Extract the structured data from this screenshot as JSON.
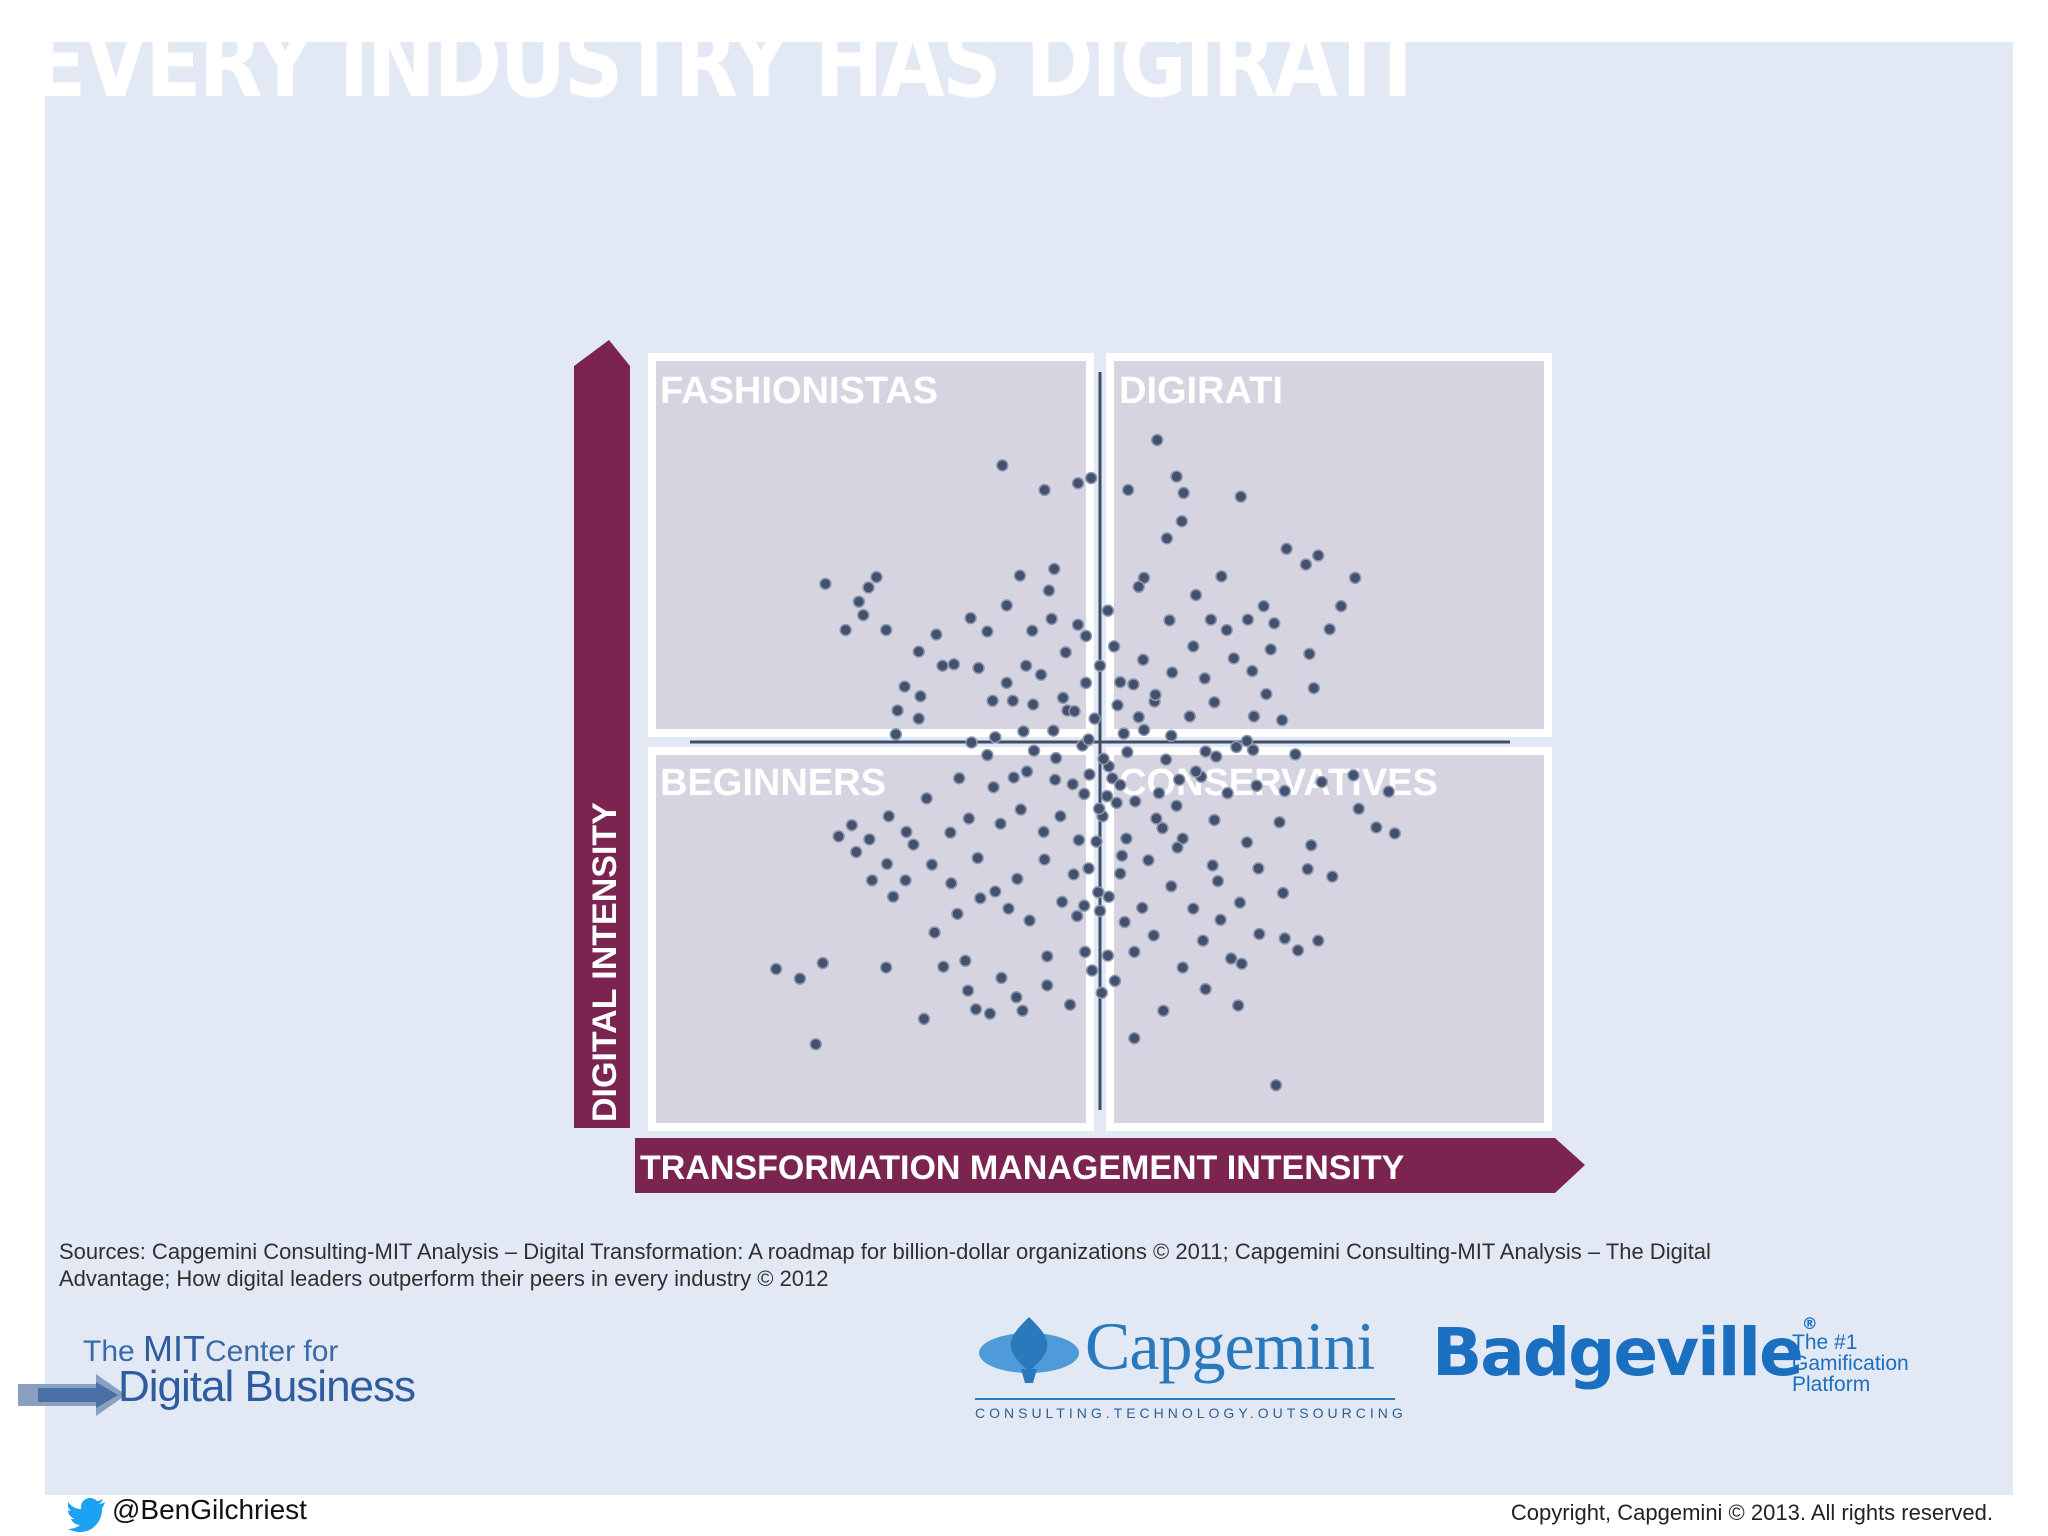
{
  "title": "EVERY INDUSTRY HAS DIGIRATI",
  "colors": {
    "background": "#e3e9f4",
    "accent": "#7b2450",
    "quadrant": "#d6d4e1",
    "dot": "#44516e"
  },
  "chart_data": {
    "type": "scatter",
    "xlabel": "TRANSFORMATION MANAGEMENT INTENSITY",
    "ylabel": "DIGITAL INTENSITY",
    "quadrants": [
      "FASHIONISTAS",
      "DIGIRATI",
      "BEGINNERS",
      "CONSERVATIVES"
    ],
    "xlim": [
      0,
      100
    ],
    "ylim": [
      0,
      100
    ],
    "grid": false,
    "points": [
      [
        38.9,
        87.2
      ],
      [
        49.0,
        85.5
      ],
      [
        43.7,
        83.9
      ],
      [
        47.5,
        84.8
      ],
      [
        59.5,
        83.5
      ],
      [
        56.5,
        90.6
      ],
      [
        53.2,
        83.9
      ],
      [
        66.0,
        83.0
      ],
      [
        59.3,
        79.7
      ],
      [
        57.6,
        77.4
      ],
      [
        55.0,
        72.1
      ],
      [
        73.4,
        73.9
      ],
      [
        68.6,
        68.3
      ],
      [
        71.2,
        76.0
      ],
      [
        74.8,
        75.1
      ],
      [
        79.0,
        72.1
      ],
      [
        77.4,
        68.3
      ],
      [
        76.1,
        65.2
      ],
      [
        73.8,
        61.9
      ],
      [
        74.3,
        57.3
      ],
      [
        41.6,
        60.3
      ],
      [
        39.4,
        58.0
      ],
      [
        36.2,
        60.0
      ],
      [
        37.8,
        55.6
      ],
      [
        42.4,
        55.1
      ],
      [
        46.3,
        54.3
      ],
      [
        50.0,
        60.3
      ],
      [
        53.8,
        57.8
      ],
      [
        54.4,
        53.4
      ],
      [
        56.2,
        55.5
      ],
      [
        60.2,
        53.5
      ],
      [
        63.0,
        55.4
      ],
      [
        67.5,
        53.5
      ],
      [
        68.9,
        56.5
      ],
      [
        70.7,
        53.0
      ],
      [
        65.5,
        49.4
      ],
      [
        62.0,
        48.8
      ],
      [
        58.1,
        50.9
      ],
      [
        52.7,
        51.2
      ],
      [
        48.0,
        49.6
      ],
      [
        44.7,
        51.6
      ],
      [
        41.3,
        51.5
      ],
      [
        38.1,
        50.7
      ],
      [
        35.4,
        50.0
      ],
      [
        32.1,
        60.3
      ],
      [
        29.6,
        56.2
      ],
      [
        29.4,
        53.2
      ],
      [
        27.0,
        54.3
      ],
      [
        26.8,
        51.1
      ],
      [
        27.8,
        57.5
      ],
      [
        21.1,
        65.1
      ],
      [
        25.7,
        65.1
      ],
      [
        23.1,
        67.1
      ],
      [
        22.6,
        68.9
      ],
      [
        23.7,
        70.8
      ],
      [
        24.6,
        72.2
      ],
      [
        18.8,
        71.3
      ],
      [
        29.4,
        62.2
      ],
      [
        31.4,
        64.5
      ],
      [
        33.4,
        60.5
      ],
      [
        35.3,
        66.7
      ],
      [
        37.2,
        64.9
      ],
      [
        39.4,
        68.4
      ],
      [
        40.9,
        72.4
      ],
      [
        44.2,
        70.4
      ],
      [
        44.8,
        73.3
      ],
      [
        47.5,
        65.8
      ],
      [
        50.9,
        67.7
      ],
      [
        51.6,
        62.9
      ],
      [
        48.4,
        64.3
      ],
      [
        34.0,
        45.2
      ],
      [
        37.9,
        44.0
      ],
      [
        41.7,
        46.1
      ],
      [
        44.9,
        45.0
      ],
      [
        48.2,
        43.1
      ],
      [
        51.4,
        45.2
      ],
      [
        54.0,
        42.1
      ],
      [
        56.7,
        43.2
      ],
      [
        58.7,
        41.5
      ],
      [
        61.5,
        45.4
      ],
      [
        64.5,
        43.2
      ],
      [
        67.8,
        44.2
      ],
      [
        71.0,
        43.5
      ],
      [
        75.2,
        44.7
      ],
      [
        78.8,
        45.6
      ],
      [
        82.8,
        43.4
      ],
      [
        83.5,
        37.8
      ],
      [
        81.4,
        38.6
      ],
      [
        79.4,
        41.1
      ],
      [
        74.0,
        36.2
      ],
      [
        70.4,
        39.3
      ],
      [
        66.7,
        36.6
      ],
      [
        63.0,
        39.6
      ],
      [
        59.4,
        37.1
      ],
      [
        56.4,
        39.8
      ],
      [
        53.0,
        37.1
      ],
      [
        50.3,
        40.1
      ],
      [
        47.6,
        36.9
      ],
      [
        45.5,
        40.1
      ],
      [
        43.6,
        38.0
      ],
      [
        41.0,
        41.0
      ],
      [
        38.7,
        39.1
      ],
      [
        35.1,
        39.8
      ],
      [
        33.0,
        37.9
      ],
      [
        30.3,
        42.5
      ],
      [
        28.0,
        38.0
      ],
      [
        26.0,
        40.1
      ],
      [
        23.8,
        37.0
      ],
      [
        21.8,
        38.9
      ],
      [
        22.3,
        35.3
      ],
      [
        20.3,
        37.4
      ],
      [
        25.8,
        33.7
      ],
      [
        27.9,
        31.5
      ],
      [
        30.9,
        33.6
      ],
      [
        33.1,
        31.1
      ],
      [
        36.1,
        34.5
      ],
      [
        38.1,
        30.0
      ],
      [
        40.6,
        31.7
      ],
      [
        43.7,
        34.3
      ],
      [
        47.0,
        32.3
      ],
      [
        49.8,
        29.9
      ],
      [
        52.3,
        32.4
      ],
      [
        54.8,
        27.8
      ],
      [
        58.1,
        30.7
      ],
      [
        60.6,
        27.7
      ],
      [
        63.4,
        31.4
      ],
      [
        65.9,
        28.5
      ],
      [
        68.0,
        33.1
      ],
      [
        70.8,
        29.8
      ],
      [
        73.6,
        33.0
      ],
      [
        74.8,
        23.4
      ],
      [
        72.5,
        22.1
      ],
      [
        68.1,
        24.3
      ],
      [
        66.1,
        20.3
      ],
      [
        63.7,
        26.2
      ],
      [
        61.7,
        23.4
      ],
      [
        59.4,
        19.8
      ],
      [
        56.1,
        24.1
      ],
      [
        53.9,
        21.9
      ],
      [
        51.7,
        18.0
      ],
      [
        50.2,
        16.4
      ],
      [
        48.3,
        21.9
      ],
      [
        46.6,
        14.8
      ],
      [
        44.0,
        17.4
      ],
      [
        41.2,
        14.0
      ],
      [
        38.8,
        18.4
      ],
      [
        37.5,
        13.6
      ],
      [
        35.0,
        16.7
      ],
      [
        32.2,
        19.9
      ],
      [
        30.0,
        12.9
      ],
      [
        25.7,
        19.8
      ],
      [
        18.5,
        20.4
      ],
      [
        15.9,
        18.3
      ],
      [
        13.2,
        19.6
      ],
      [
        17.7,
        9.5
      ],
      [
        53.9,
        10.3
      ],
      [
        70.0,
        4.0
      ],
      [
        57.2,
        14.0
      ],
      [
        62.0,
        16.9
      ],
      [
        65.7,
        14.7
      ],
      [
        42.3,
        65.0
      ],
      [
        52.3,
        58.1
      ],
      [
        47.1,
        54.2
      ],
      [
        49.4,
        53.2
      ],
      [
        45.8,
        56.0
      ],
      [
        43.3,
        59.1
      ],
      [
        40.1,
        55.6
      ],
      [
        48.4,
        58.0
      ],
      [
        52.0,
        55.0
      ],
      [
        54.9,
        61.1
      ],
      [
        56.3,
        56.4
      ],
      [
        58.2,
        59.4
      ],
      [
        61.9,
        58.6
      ],
      [
        65.2,
        61.3
      ],
      [
        67.3,
        59.6
      ],
      [
        60.6,
        62.9
      ],
      [
        62.6,
        66.5
      ],
      [
        64.4,
        65.1
      ],
      [
        66.8,
        66.5
      ],
      [
        69.4,
        62.5
      ],
      [
        51.0,
        46.8
      ],
      [
        50.8,
        42.8
      ],
      [
        49.9,
        41.1
      ],
      [
        52.3,
        44.3
      ],
      [
        48.8,
        45.7
      ],
      [
        51.9,
        41.9
      ],
      [
        50.4,
        47.8
      ],
      [
        49.6,
        36.7
      ],
      [
        52.5,
        34.8
      ],
      [
        48.7,
        33.1
      ],
      [
        51.0,
        29.3
      ],
      [
        50.0,
        27.4
      ],
      [
        48.2,
        28.1
      ],
      [
        52.8,
        25.9
      ],
      [
        47.4,
        26.7
      ],
      [
        49.1,
        19.4
      ],
      [
        50.9,
        21.4
      ],
      [
        57.1,
        38.5
      ],
      [
        55.5,
        34.2
      ],
      [
        58.8,
        35.9
      ],
      [
        45.7,
        28.6
      ],
      [
        42.0,
        26.1
      ],
      [
        39.6,
        27.7
      ],
      [
        36.4,
        29.1
      ],
      [
        33.8,
        27.0
      ],
      [
        31.2,
        24.5
      ],
      [
        28.8,
        36.3
      ],
      [
        26.5,
        29.3
      ],
      [
        24.1,
        31.5
      ],
      [
        60.9,
        46.1
      ],
      [
        63.2,
        48.1
      ],
      [
        66.7,
        50.2
      ],
      [
        59.0,
        45.0
      ],
      [
        57.5,
        47.7
      ],
      [
        45.0,
        47.9
      ],
      [
        42.5,
        48.9
      ],
      [
        40.2,
        45.3
      ],
      [
        37.2,
        48.3
      ],
      [
        46.1,
        62.1
      ],
      [
        44.5,
        66.6
      ],
      [
        57.9,
        66.4
      ],
      [
        60.9,
        69.8
      ],
      [
        63.8,
        72.3
      ],
      [
        69.8,
        66.0
      ],
      [
        54.4,
        70.9
      ],
      [
        58.7,
        85.7
      ],
      [
        48.7,
        50.4
      ],
      [
        53.1,
        48.7
      ],
      [
        55.0,
        51.7
      ],
      [
        46.9,
        44.4
      ],
      [
        71.0,
        23.7
      ],
      [
        76.4,
        32.0
      ],
      [
        62.8,
        33.5
      ],
      [
        64.9,
        21.0
      ],
      [
        44.0,
        21.3
      ],
      [
        40.5,
        15.8
      ],
      [
        35.9,
        14.2
      ],
      [
        34.7,
        20.7
      ],
      [
        67.4,
        49.0
      ],
      [
        72.2,
        48.4
      ]
    ]
  },
  "sources": "Sources: Capgemini Consulting-MIT Analysis – Digital Transformation: A roadmap for billion-dollar organizations © 2011; Capgemini Consulting-MIT Analysis – The Digital Advantage; How digital leaders outperform their peers in every industry © 2012",
  "logos": {
    "mit_line1_a": "The ",
    "mit_line1_b": "MIT",
    "mit_line1_c": "Center for",
    "mit_line2": "Digital Business",
    "capgemini_name": "Capgemini",
    "capgemini_tagline": "CONSULTING.TECHNOLOGY.OUTSOURCING",
    "badgeville_name": "Badgeville",
    "badgeville_mark": "®",
    "badgeville_tagline": "The #1 Gamification Platform"
  },
  "twitter_handle": "@BenGilchriest",
  "copyright": "Copyright, Capgemini © 2013. All rights reserved."
}
